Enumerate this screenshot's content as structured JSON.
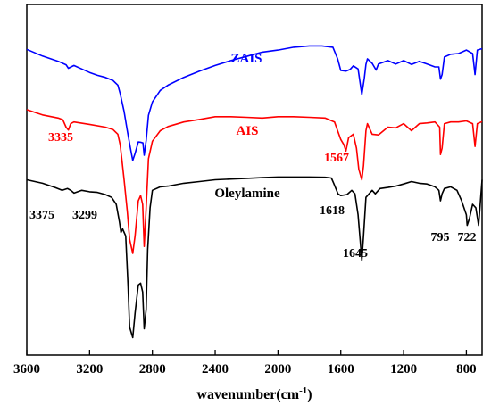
{
  "chart_data": {
    "type": "line",
    "xlabel": "wavenumber(cm",
    "xlabel_sup": "-1",
    "xlabel_close": ")",
    "ylabel": "",
    "xlim": [
      3600,
      700
    ],
    "x_reversed": true,
    "ylim": [
      0,
      1
    ],
    "x_ticks": [
      "3600",
      "3200",
      "2800",
      "2400",
      "2000",
      "1600",
      "1200",
      "800"
    ],
    "x_tick_values": [
      3600,
      3200,
      2800,
      2400,
      2000,
      1600,
      1200,
      800
    ],
    "y_ticks_shown": false,
    "grid": false,
    "series": [
      {
        "name": "ZAIS",
        "color": "#0000ff",
        "points": [
          [
            3600,
            0.872
          ],
          [
            3500,
            0.853
          ],
          [
            3400,
            0.838
          ],
          [
            3350,
            0.828
          ],
          [
            3335,
            0.818
          ],
          [
            3300,
            0.826
          ],
          [
            3250,
            0.816
          ],
          [
            3200,
            0.806
          ],
          [
            3150,
            0.798
          ],
          [
            3100,
            0.792
          ],
          [
            3050,
            0.783
          ],
          [
            3020,
            0.77
          ],
          [
            3005,
            0.746
          ],
          [
            2995,
            0.725
          ],
          [
            2980,
            0.695
          ],
          [
            2960,
            0.64
          ],
          [
            2940,
            0.59
          ],
          [
            2925,
            0.555
          ],
          [
            2910,
            0.575
          ],
          [
            2890,
            0.608
          ],
          [
            2875,
            0.607
          ],
          [
            2860,
            0.605
          ],
          [
            2852,
            0.57
          ],
          [
            2840,
            0.612
          ],
          [
            2825,
            0.684
          ],
          [
            2800,
            0.722
          ],
          [
            2750,
            0.755
          ],
          [
            2700,
            0.77
          ],
          [
            2600,
            0.792
          ],
          [
            2500,
            0.81
          ],
          [
            2400,
            0.826
          ],
          [
            2300,
            0.84
          ],
          [
            2200,
            0.852
          ],
          [
            2100,
            0.864
          ],
          [
            2000,
            0.87
          ],
          [
            1900,
            0.878
          ],
          [
            1800,
            0.882
          ],
          [
            1720,
            0.882
          ],
          [
            1650,
            0.878
          ],
          [
            1620,
            0.845
          ],
          [
            1600,
            0.812
          ],
          [
            1567,
            0.81
          ],
          [
            1540,
            0.815
          ],
          [
            1520,
            0.825
          ],
          [
            1490,
            0.816
          ],
          [
            1466,
            0.743
          ],
          [
            1450,
            0.79
          ],
          [
            1440,
            0.829
          ],
          [
            1430,
            0.845
          ],
          [
            1400,
            0.832
          ],
          [
            1375,
            0.813
          ],
          [
            1360,
            0.83
          ],
          [
            1300,
            0.84
          ],
          [
            1250,
            0.83
          ],
          [
            1200,
            0.84
          ],
          [
            1150,
            0.829
          ],
          [
            1100,
            0.838
          ],
          [
            1050,
            0.83
          ],
          [
            1000,
            0.822
          ],
          [
            975,
            0.822
          ],
          [
            965,
            0.787
          ],
          [
            955,
            0.8
          ],
          [
            940,
            0.85
          ],
          [
            900,
            0.858
          ],
          [
            850,
            0.86
          ],
          [
            800,
            0.87
          ],
          [
            760,
            0.86
          ],
          [
            745,
            0.8
          ],
          [
            730,
            0.87
          ],
          [
            700,
            0.874
          ]
        ]
      },
      {
        "name": "AIS",
        "color": "#ff0000",
        "points": [
          [
            3600,
            0.7
          ],
          [
            3500,
            0.685
          ],
          [
            3400,
            0.676
          ],
          [
            3370,
            0.671
          ],
          [
            3350,
            0.65
          ],
          [
            3335,
            0.642
          ],
          [
            3320,
            0.66
          ],
          [
            3300,
            0.665
          ],
          [
            3200,
            0.658
          ],
          [
            3100,
            0.65
          ],
          [
            3050,
            0.643
          ],
          [
            3020,
            0.63
          ],
          [
            3005,
            0.6
          ],
          [
            2995,
            0.56
          ],
          [
            2980,
            0.5
          ],
          [
            2960,
            0.41
          ],
          [
            2945,
            0.33
          ],
          [
            2925,
            0.29
          ],
          [
            2910,
            0.34
          ],
          [
            2890,
            0.44
          ],
          [
            2875,
            0.455
          ],
          [
            2862,
            0.43
          ],
          [
            2852,
            0.31
          ],
          [
            2840,
            0.42
          ],
          [
            2825,
            0.56
          ],
          [
            2800,
            0.61
          ],
          [
            2750,
            0.64
          ],
          [
            2700,
            0.652
          ],
          [
            2600,
            0.665
          ],
          [
            2500,
            0.672
          ],
          [
            2400,
            0.68
          ],
          [
            2300,
            0.68
          ],
          [
            2200,
            0.678
          ],
          [
            2100,
            0.676
          ],
          [
            2000,
            0.68
          ],
          [
            1900,
            0.68
          ],
          [
            1800,
            0.678
          ],
          [
            1700,
            0.676
          ],
          [
            1640,
            0.665
          ],
          [
            1620,
            0.64
          ],
          [
            1600,
            0.615
          ],
          [
            1580,
            0.6
          ],
          [
            1567,
            0.582
          ],
          [
            1550,
            0.62
          ],
          [
            1520,
            0.63
          ],
          [
            1500,
            0.59
          ],
          [
            1485,
            0.53
          ],
          [
            1466,
            0.5
          ],
          [
            1455,
            0.54
          ],
          [
            1440,
            0.64
          ],
          [
            1430,
            0.66
          ],
          [
            1410,
            0.64
          ],
          [
            1400,
            0.63
          ],
          [
            1360,
            0.628
          ],
          [
            1300,
            0.65
          ],
          [
            1250,
            0.648
          ],
          [
            1200,
            0.66
          ],
          [
            1150,
            0.64
          ],
          [
            1100,
            0.66
          ],
          [
            1050,
            0.662
          ],
          [
            1000,
            0.665
          ],
          [
            970,
            0.65
          ],
          [
            965,
            0.572
          ],
          [
            955,
            0.59
          ],
          [
            940,
            0.66
          ],
          [
            900,
            0.665
          ],
          [
            850,
            0.665
          ],
          [
            800,
            0.668
          ],
          [
            760,
            0.66
          ],
          [
            745,
            0.595
          ],
          [
            730,
            0.66
          ],
          [
            700,
            0.666
          ]
        ]
      },
      {
        "name": "Oleylamine",
        "color": "#000000",
        "points": [
          [
            3600,
            0.5
          ],
          [
            3500,
            0.49
          ],
          [
            3420,
            0.478
          ],
          [
            3375,
            0.47
          ],
          [
            3340,
            0.475
          ],
          [
            3320,
            0.47
          ],
          [
            3299,
            0.462
          ],
          [
            3250,
            0.47
          ],
          [
            3200,
            0.466
          ],
          [
            3150,
            0.464
          ],
          [
            3100,
            0.458
          ],
          [
            3060,
            0.45
          ],
          [
            3030,
            0.43
          ],
          [
            3010,
            0.38
          ],
          [
            3000,
            0.35
          ],
          [
            2990,
            0.36
          ],
          [
            2970,
            0.34
          ],
          [
            2955,
            0.2
          ],
          [
            2945,
            0.08
          ],
          [
            2925,
            0.05
          ],
          [
            2910,
            0.12
          ],
          [
            2890,
            0.2
          ],
          [
            2875,
            0.205
          ],
          [
            2862,
            0.18
          ],
          [
            2852,
            0.075
          ],
          [
            2840,
            0.13
          ],
          [
            2830,
            0.3
          ],
          [
            2815,
            0.42
          ],
          [
            2800,
            0.47
          ],
          [
            2750,
            0.48
          ],
          [
            2700,
            0.482
          ],
          [
            2600,
            0.49
          ],
          [
            2500,
            0.495
          ],
          [
            2400,
            0.5
          ],
          [
            2300,
            0.502
          ],
          [
            2200,
            0.504
          ],
          [
            2100,
            0.506
          ],
          [
            2000,
            0.508
          ],
          [
            1900,
            0.508
          ],
          [
            1800,
            0.508
          ],
          [
            1700,
            0.507
          ],
          [
            1660,
            0.505
          ],
          [
            1645,
            0.49
          ],
          [
            1618,
            0.46
          ],
          [
            1600,
            0.455
          ],
          [
            1560,
            0.458
          ],
          [
            1530,
            0.47
          ],
          [
            1510,
            0.46
          ],
          [
            1490,
            0.4
          ],
          [
            1466,
            0.27
          ],
          [
            1455,
            0.34
          ],
          [
            1440,
            0.45
          ],
          [
            1420,
            0.46
          ],
          [
            1400,
            0.47
          ],
          [
            1380,
            0.46
          ],
          [
            1350,
            0.475
          ],
          [
            1300,
            0.478
          ],
          [
            1250,
            0.482
          ],
          [
            1200,
            0.488
          ],
          [
            1150,
            0.495
          ],
          [
            1100,
            0.49
          ],
          [
            1050,
            0.488
          ],
          [
            1000,
            0.48
          ],
          [
            975,
            0.47
          ],
          [
            965,
            0.44
          ],
          [
            955,
            0.46
          ],
          [
            940,
            0.475
          ],
          [
            900,
            0.48
          ],
          [
            860,
            0.47
          ],
          [
            830,
            0.44
          ],
          [
            800,
            0.4
          ],
          [
            795,
            0.37
          ],
          [
            780,
            0.39
          ],
          [
            760,
            0.43
          ],
          [
            740,
            0.42
          ],
          [
            722,
            0.37
          ],
          [
            710,
            0.44
          ],
          [
            700,
            0.5
          ]
        ]
      }
    ],
    "annotations": [
      {
        "text": "ZAIS",
        "color": "#0000ff",
        "kind": "series"
      },
      {
        "text": "AIS",
        "color": "#ff0000",
        "kind": "series"
      },
      {
        "text": "Oleylamine",
        "color": "#000000",
        "kind": "series"
      },
      {
        "text": "3335",
        "color": "#ff0000",
        "kind": "peak"
      },
      {
        "text": "1567",
        "color": "#ff0000",
        "kind": "peak"
      },
      {
        "text": "3375",
        "color": "#000000",
        "kind": "peak"
      },
      {
        "text": "3299",
        "color": "#000000",
        "kind": "peak"
      },
      {
        "text": "1618",
        "color": "#000000",
        "kind": "peak"
      },
      {
        "text": "1645",
        "color": "#000000",
        "kind": "peak"
      },
      {
        "text": "795",
        "color": "#000000",
        "kind": "peak"
      },
      {
        "text": "722",
        "color": "#000000",
        "kind": "peak"
      }
    ]
  }
}
